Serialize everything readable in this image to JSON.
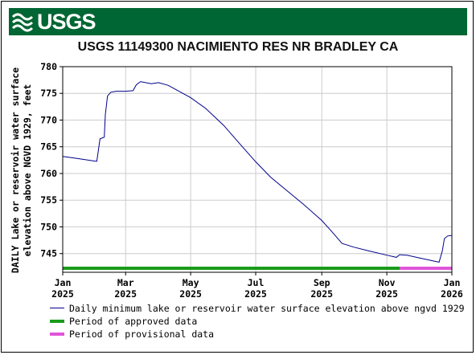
{
  "header": {
    "logo_text": "USGS"
  },
  "colors": {
    "banner": "#006633",
    "line": "#00008b",
    "approved": "#1a9b1a",
    "provisional": "#e055d8"
  },
  "chart_data": {
    "type": "line",
    "title": "USGS 11149300 NACIMIENTO RES NR BRADLEY CA",
    "ylabel": "DAILY Lake or reservoir water surface elevation above NGVD 1929, feet",
    "ylabel_lines": [
      "DAILY Lake or reservoir water surface",
      "elevation above NGVD 1929, feet"
    ],
    "xlabel": "",
    "ylim": [
      741.5,
      780
    ],
    "yticks": [
      745,
      750,
      755,
      760,
      765,
      770,
      775,
      780
    ],
    "xlim": [
      "2025-01-01",
      "2026-01-01"
    ],
    "xticks": [
      {
        "date": "2025-01-01",
        "label": "Jan",
        "sub": "2025"
      },
      {
        "date": "2025-03-01",
        "label": "Mar",
        "sub": "2025"
      },
      {
        "date": "2025-05-01",
        "label": "May",
        "sub": "2025"
      },
      {
        "date": "2025-07-01",
        "label": "Jul",
        "sub": "2025"
      },
      {
        "date": "2025-09-01",
        "label": "Sep",
        "sub": "2025"
      },
      {
        "date": "2025-11-01",
        "label": "Nov",
        "sub": "2025"
      },
      {
        "date": "2026-01-01",
        "label": "Jan",
        "sub": "2026"
      }
    ],
    "grid": true,
    "legend_position": "bottom",
    "series": [
      {
        "name": "Daily minimum lake or reservoir water surface elevation above ngvd 1929",
        "points": [
          [
            "2025-01-01",
            763.2
          ],
          [
            "2025-01-15",
            762.8
          ],
          [
            "2025-02-01",
            762.3
          ],
          [
            "2025-02-02",
            762.3
          ],
          [
            "2025-02-05",
            766.5
          ],
          [
            "2025-02-09",
            766.8
          ],
          [
            "2025-02-10",
            771.0
          ],
          [
            "2025-02-12",
            774.5
          ],
          [
            "2025-02-15",
            775.2
          ],
          [
            "2025-02-20",
            775.4
          ],
          [
            "2025-03-01",
            775.4
          ],
          [
            "2025-03-08",
            775.5
          ],
          [
            "2025-03-11",
            776.6
          ],
          [
            "2025-03-15",
            777.2
          ],
          [
            "2025-03-25",
            776.8
          ],
          [
            "2025-04-01",
            777.0
          ],
          [
            "2025-04-10",
            776.5
          ],
          [
            "2025-05-01",
            774.2
          ],
          [
            "2025-05-15",
            772.2
          ],
          [
            "2025-06-01",
            769.0
          ],
          [
            "2025-06-15",
            765.8
          ],
          [
            "2025-07-01",
            762.2
          ],
          [
            "2025-07-15",
            759.3
          ],
          [
            "2025-08-01",
            756.5
          ],
          [
            "2025-08-15",
            754.2
          ],
          [
            "2025-09-01",
            751.2
          ],
          [
            "2025-09-10",
            749.2
          ],
          [
            "2025-09-20",
            746.9
          ],
          [
            "2025-10-01",
            746.2
          ],
          [
            "2025-10-15",
            745.5
          ],
          [
            "2025-11-01",
            744.7
          ],
          [
            "2025-11-10",
            744.3
          ],
          [
            "2025-11-13",
            744.8
          ],
          [
            "2025-11-20",
            744.7
          ],
          [
            "2025-12-01",
            744.2
          ],
          [
            "2025-12-15",
            743.6
          ],
          [
            "2025-12-20",
            743.4
          ],
          [
            "2025-12-23",
            745.5
          ],
          [
            "2025-12-25",
            747.8
          ],
          [
            "2025-12-28",
            748.3
          ],
          [
            "2026-01-01",
            748.4
          ]
        ]
      }
    ],
    "periods": [
      {
        "name": "Period of approved data",
        "start": "2025-01-01",
        "end": "2025-11-13"
      },
      {
        "name": "Period of provisional data",
        "start": "2025-11-13",
        "end": "2026-01-01"
      }
    ]
  }
}
